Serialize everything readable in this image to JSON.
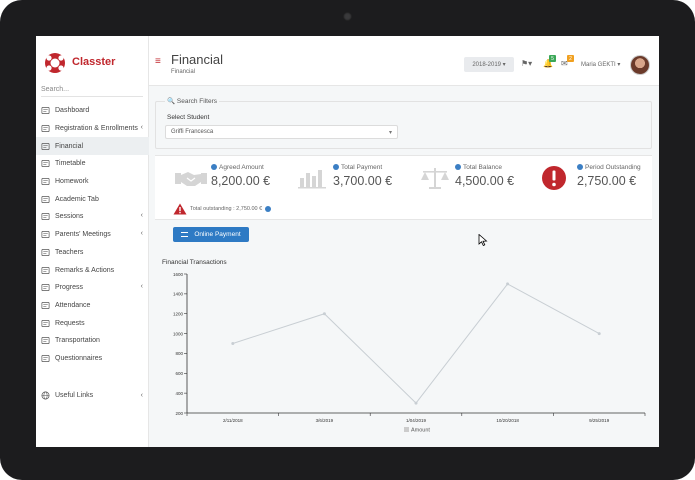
{
  "app": {
    "brand": "Classter",
    "search_placeholder": "Search..."
  },
  "sidebar": {
    "items": [
      {
        "label": "Dashboard",
        "icon": "home-icon",
        "chevron": ""
      },
      {
        "label": "Registration & Enrollments",
        "icon": "bank-icon",
        "chevron": "‹"
      },
      {
        "label": "Financial",
        "icon": "money-icon",
        "chevron": "",
        "active": true
      },
      {
        "label": "Timetable",
        "icon": "calendar-icon",
        "chevron": ""
      },
      {
        "label": "Homework",
        "icon": "book-icon",
        "chevron": ""
      },
      {
        "label": "Academic Tab",
        "icon": "academic-icon",
        "chevron": ""
      },
      {
        "label": "Sessions",
        "icon": "sessions-icon",
        "chevron": "‹"
      },
      {
        "label": "Parents' Meetings",
        "icon": "meeting-icon",
        "chevron": "‹"
      },
      {
        "label": "Teachers",
        "icon": "teacher-icon",
        "chevron": ""
      },
      {
        "label": "Remarks & Actions",
        "icon": "remarks-icon",
        "chevron": ""
      },
      {
        "label": "Progress",
        "icon": "progress-icon",
        "chevron": "‹"
      },
      {
        "label": "Attendance",
        "icon": "attendance-icon",
        "chevron": ""
      },
      {
        "label": "Requests",
        "icon": "clipboard-icon",
        "chevron": ""
      },
      {
        "label": "Transportation",
        "icon": "bus-icon",
        "chevron": ""
      },
      {
        "label": "Questionnaires",
        "icon": "list-icon",
        "chevron": ""
      }
    ],
    "useful_links": {
      "label": "Useful Links",
      "chevron": "‹"
    }
  },
  "header": {
    "title": "Financial",
    "subtitle": "Financial",
    "year": "2018-2019 ▾",
    "notif_badge": "5",
    "mail_badge": "2",
    "username": "Maria GEKTI ▾"
  },
  "filters": {
    "legend": "🔍 Search Filters",
    "label": "Select Student",
    "value": "Griffi Francesca",
    "caret": "▾"
  },
  "stats": [
    {
      "label": "Agreed Amount",
      "value": "8,200.00 €",
      "icon": "handshake-icon"
    },
    {
      "label": "Total Payment",
      "value": "3,700.00 €",
      "icon": "bar-chart-icon"
    },
    {
      "label": "Total Balance",
      "value": "4,500.00 €",
      "icon": "balance-scale-icon"
    },
    {
      "label": "Period Outstanding",
      "value": "2,750.00 €",
      "icon": "exclamation-icon"
    }
  ],
  "outstanding": {
    "text": "Total outstanding : 2,750.00 €",
    "icon": "warning-icon"
  },
  "pay_button": {
    "label": "Online Payment"
  },
  "colors": {
    "brand": "#c0272d",
    "primary": "#2e7ac4",
    "alert": "#c0272d"
  },
  "chart_data": {
    "type": "line",
    "title": "Financial Transactions",
    "categories": [
      "2/11/2018",
      "3/6/2019",
      "1/04/2019",
      "10/20/2018",
      "9/25/2019"
    ],
    "series": [
      {
        "name": "Amount",
        "values": [
          900,
          1200,
          300,
          1500,
          1000
        ]
      }
    ],
    "ylim": [
      200,
      1600
    ],
    "yticks": [
      200,
      400,
      600,
      800,
      1000,
      1200,
      1400,
      1600
    ],
    "legend": "bottom",
    "grid": false
  }
}
